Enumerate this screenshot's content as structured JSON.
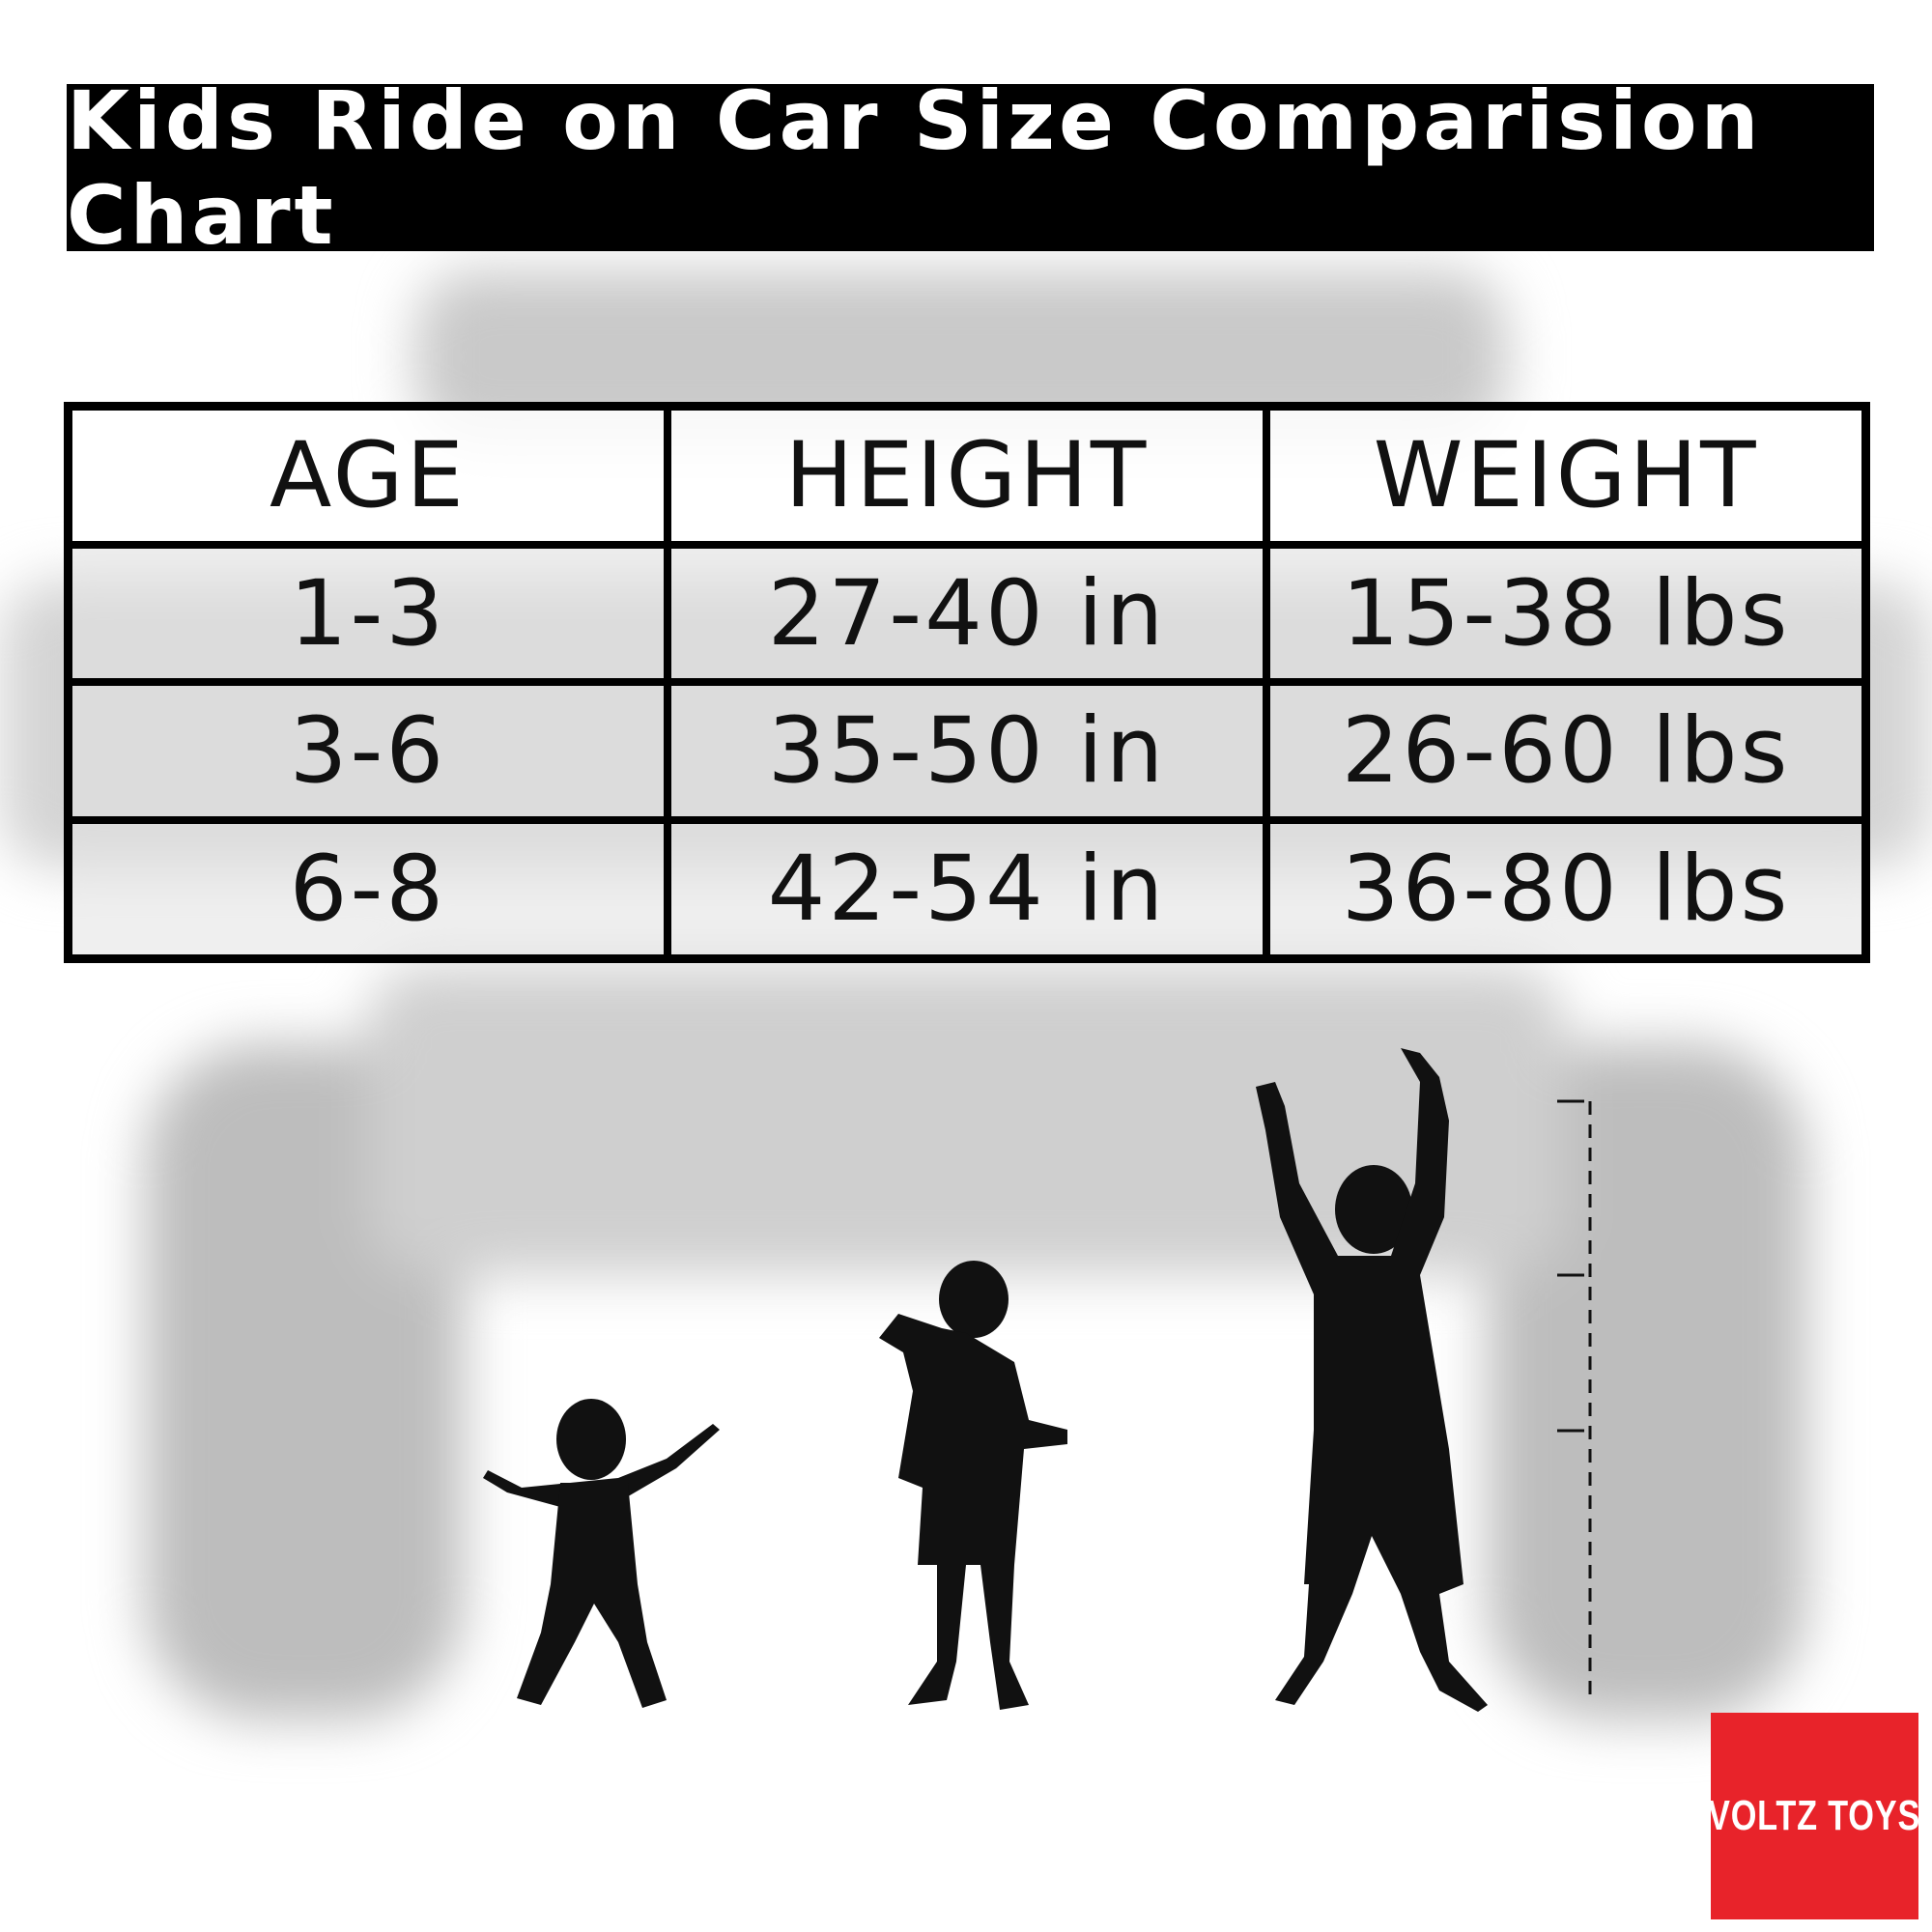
{
  "title": "Kids Ride on Car Size Comparision Chart",
  "table": {
    "headers": [
      "AGE",
      "HEIGHT",
      "WEIGHT"
    ],
    "rows": [
      [
        "1-3",
        "27-40 in",
        "15-38 lbs"
      ],
      [
        "3-6",
        "35-50 in",
        "26-60 lbs"
      ],
      [
        "6-8",
        "42-54 in",
        "36-80 lbs"
      ]
    ]
  },
  "logo": {
    "text": "VOLTZ TOYS",
    "color": "#e8232a"
  },
  "colors": {
    "title_bg": "#000000",
    "silhouette": "#111111"
  }
}
